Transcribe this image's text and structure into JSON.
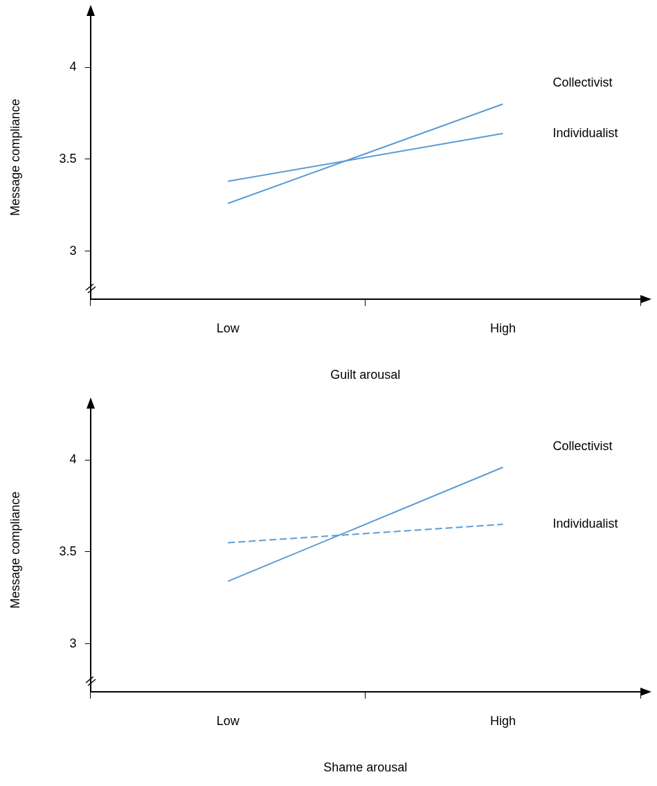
{
  "chart_data": [
    {
      "type": "line",
      "xlabel": "Guilt arousal",
      "ylabel": "Message compliance",
      "categories": [
        "Low",
        "High"
      ],
      "series": [
        {
          "name": "Collectivist",
          "color": "#5b9bd5",
          "values": [
            3.26,
            3.8
          ]
        },
        {
          "name": "Individualist",
          "color": "#5b9bd5",
          "values": [
            3.38,
            3.64
          ]
        }
      ],
      "ylim": [
        2.74,
        4.28
      ],
      "yticks": [
        3,
        3.5,
        4
      ],
      "grid": false,
      "legend": false,
      "marker": "none"
    },
    {
      "type": "line",
      "xlabel": "Shame arousal",
      "ylabel": "Message compliance",
      "categories": [
        "Low",
        "High"
      ],
      "series": [
        {
          "name": "Collectivist",
          "color": "#5b9bd5",
          "values": [
            3.34,
            3.96
          ]
        },
        {
          "name": "Individualist",
          "color": "#5b9bd5",
          "values": [
            3.55,
            3.65
          ],
          "line_style": "dashed"
        }
      ],
      "ylim": [
        2.74,
        4.28
      ],
      "yticks": [
        3,
        3.5,
        4
      ],
      "grid": false,
      "legend": false,
      "marker": "none"
    }
  ]
}
